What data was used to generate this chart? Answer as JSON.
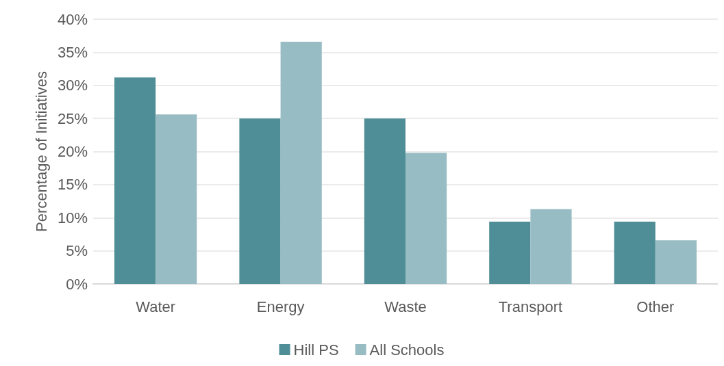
{
  "chart_data": {
    "type": "bar",
    "ylabel": "Percentage of Initiatives",
    "categories": [
      "Water",
      "Energy",
      "Waste",
      "Transport",
      "Other"
    ],
    "series": [
      {
        "name": "Hill PS",
        "color": "#4f8d97",
        "values": [
          31.2,
          25,
          25,
          9.4,
          9.4
        ]
      },
      {
        "name": "All Schools",
        "color": "#98bcc3",
        "values": [
          25.6,
          36.6,
          19.8,
          11.3,
          6.6
        ]
      }
    ],
    "ylim": [
      0,
      40
    ],
    "yticks": [
      {
        "value": 0,
        "label": "0%"
      },
      {
        "value": 5,
        "label": "5%"
      },
      {
        "value": 10,
        "label": "10%"
      },
      {
        "value": 15,
        "label": "15%"
      },
      {
        "value": 20,
        "label": "20%"
      },
      {
        "value": 25,
        "label": "25%"
      },
      {
        "value": 30,
        "label": "30%"
      },
      {
        "value": 35,
        "label": "35%"
      },
      {
        "value": 40,
        "label": "40%"
      }
    ],
    "grid": "y",
    "legend": "bottom"
  }
}
